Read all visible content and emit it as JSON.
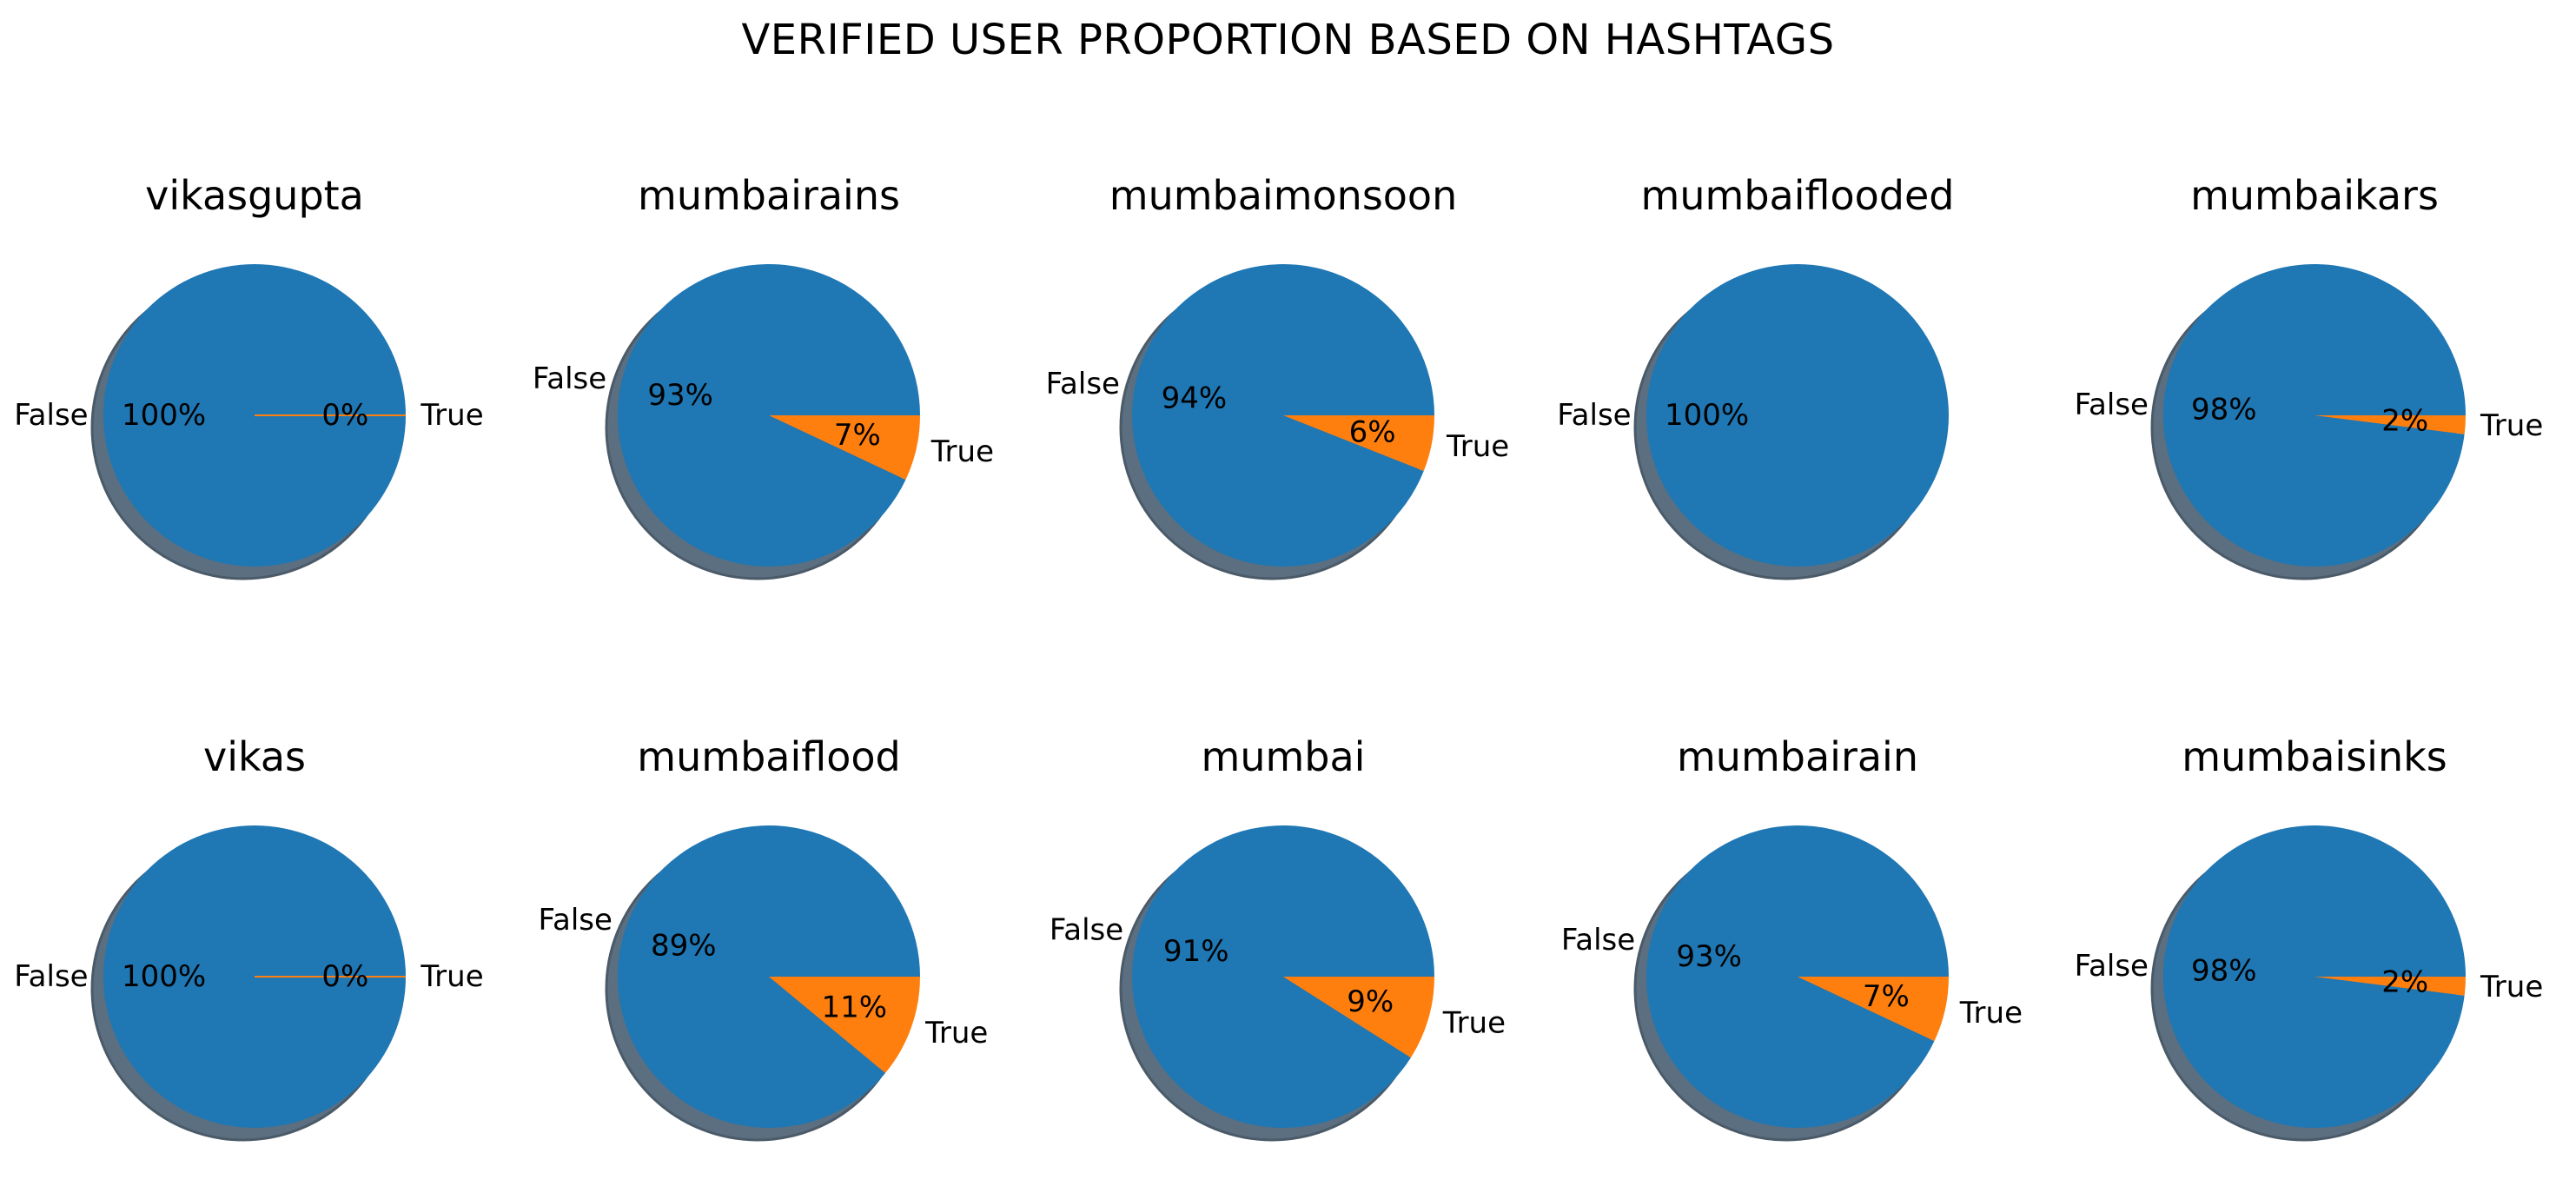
{
  "title": "VERIFIED USER PROPORTION BASED ON HASHTAGS",
  "colors": {
    "false": "#1f77b4",
    "true": "#ff7f0e",
    "shadow": "#5b6f80"
  },
  "chart_data": [
    {
      "type": "pie",
      "title": "vikasgupta",
      "labels": [
        "False",
        "True"
      ],
      "values": [
        100,
        0
      ],
      "pct_labels": [
        "100%",
        "0%"
      ]
    },
    {
      "type": "pie",
      "title": "mumbairains",
      "labels": [
        "False",
        "True"
      ],
      "values": [
        93,
        7
      ],
      "pct_labels": [
        "93%",
        "7%"
      ]
    },
    {
      "type": "pie",
      "title": "mumbaimonsoon",
      "labels": [
        "False",
        "True"
      ],
      "values": [
        94,
        6
      ],
      "pct_labels": [
        "94%",
        "6%"
      ]
    },
    {
      "type": "pie",
      "title": "mumbaiflooded",
      "labels": [
        "False"
      ],
      "values": [
        100
      ],
      "pct_labels": [
        "100%"
      ]
    },
    {
      "type": "pie",
      "title": "mumbaikars",
      "labels": [
        "False",
        "True"
      ],
      "values": [
        98,
        2
      ],
      "pct_labels": [
        "98%",
        "2%"
      ]
    },
    {
      "type": "pie",
      "title": "vikas",
      "labels": [
        "False",
        "True"
      ],
      "values": [
        100,
        0
      ],
      "pct_labels": [
        "100%",
        "0%"
      ]
    },
    {
      "type": "pie",
      "title": "mumbaiflood",
      "labels": [
        "False",
        "True"
      ],
      "values": [
        89,
        11
      ],
      "pct_labels": [
        "89%",
        "11%"
      ]
    },
    {
      "type": "pie",
      "title": "mumbai",
      "labels": [
        "False",
        "True"
      ],
      "values": [
        91,
        9
      ],
      "pct_labels": [
        "91%",
        "9%"
      ]
    },
    {
      "type": "pie",
      "title": "mumbairain",
      "labels": [
        "False",
        "True"
      ],
      "values": [
        93,
        7
      ],
      "pct_labels": [
        "93%",
        "7%"
      ]
    },
    {
      "type": "pie",
      "title": "mumbaisinks",
      "labels": [
        "False",
        "True"
      ],
      "values": [
        98,
        2
      ],
      "pct_labels": [
        "98%",
        "2%"
      ]
    }
  ]
}
